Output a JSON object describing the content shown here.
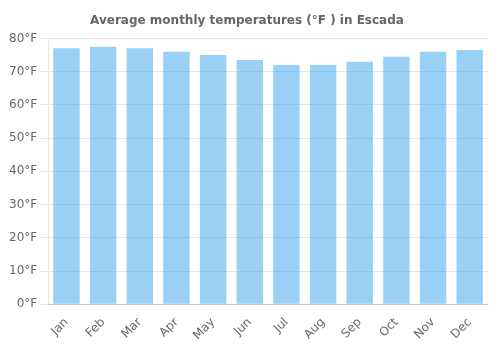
{
  "chart_data": {
    "type": "bar",
    "title": "Average monthly temperatures (°F ) in Escada",
    "categories": [
      "Jan",
      "Feb",
      "Mar",
      "Apr",
      "May",
      "Jun",
      "Jul",
      "Aug",
      "Sep",
      "Oct",
      "Nov",
      "Dec"
    ],
    "values": [
      77,
      77.5,
      77,
      76,
      75,
      73.5,
      72,
      72,
      73,
      74.5,
      76,
      76.5
    ],
    "ylim": [
      0,
      80
    ],
    "yticks": [
      {
        "value": 0,
        "label": "0°F"
      },
      {
        "value": 10,
        "label": "10°F"
      },
      {
        "value": 20,
        "label": "20°F"
      },
      {
        "value": 30,
        "label": "30°F"
      },
      {
        "value": 40,
        "label": "40°F"
      },
      {
        "value": 50,
        "label": "50°F"
      },
      {
        "value": 60,
        "label": "60°F"
      },
      {
        "value": 70,
        "label": "70°F"
      },
      {
        "value": 80,
        "label": "80°F"
      }
    ],
    "grid": true
  }
}
